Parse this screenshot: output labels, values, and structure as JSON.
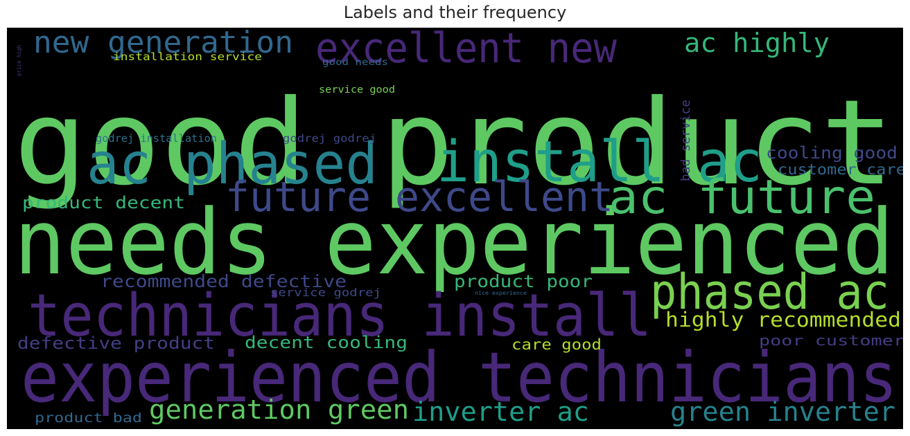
{
  "chart_data": {
    "type": "wordcloud",
    "title": "Labels and their frequency",
    "background": "#000000",
    "words": [
      {
        "text": "good product",
        "color": "#5ec962"
      },
      {
        "text": "needs experienced",
        "color": "#5ec962"
      },
      {
        "text": "experienced technicians",
        "color": "#482878"
      },
      {
        "text": "technicians install",
        "color": "#482878"
      },
      {
        "text": "ac phased",
        "color": "#26828e"
      },
      {
        "text": "install ac",
        "color": "#1f9e89"
      },
      {
        "text": "excellent new",
        "color": "#482878"
      },
      {
        "text": "future excellent",
        "color": "#3e4989"
      },
      {
        "text": "ac future",
        "color": "#4ac16d"
      },
      {
        "text": "phased ac",
        "color": "#7ad151"
      },
      {
        "text": "new generation",
        "color": "#31688e"
      },
      {
        "text": "generation green",
        "color": "#5ec962"
      },
      {
        "text": "inverter ac",
        "color": "#1f9e89"
      },
      {
        "text": "green inverter",
        "color": "#26828e"
      },
      {
        "text": "ac highly",
        "color": "#35b779"
      },
      {
        "text": "highly recommended",
        "color": "#b5de2b"
      },
      {
        "text": "recommended defective",
        "color": "#3e4989"
      },
      {
        "text": "product poor",
        "color": "#35b779"
      },
      {
        "text": "cooling good",
        "color": "#3e4989"
      },
      {
        "text": "customer care",
        "color": "#31688e"
      },
      {
        "text": "product decent",
        "color": "#35b779"
      },
      {
        "text": "defective product",
        "color": "#433e85"
      },
      {
        "text": "decent cooling",
        "color": "#35b779"
      },
      {
        "text": "poor customer",
        "color": "#433e85"
      },
      {
        "text": "care good",
        "color": "#b5de2b"
      },
      {
        "text": "product bad",
        "color": "#31688e"
      },
      {
        "text": "bad service",
        "color": "#433e85"
      },
      {
        "text": "service godrej",
        "color": "#3e4989"
      },
      {
        "text": "godrej installation",
        "color": "#2c728e"
      },
      {
        "text": "godrej godrej",
        "color": "#3e4989"
      },
      {
        "text": "installation service",
        "color": "#b5de2b"
      },
      {
        "text": "good needs",
        "color": "#31688e"
      },
      {
        "text": "service good",
        "color": "#7ad151"
      },
      {
        "text": "price high",
        "color": "#433e85"
      },
      {
        "text": "nice experience",
        "color": "#31688e"
      }
    ]
  }
}
